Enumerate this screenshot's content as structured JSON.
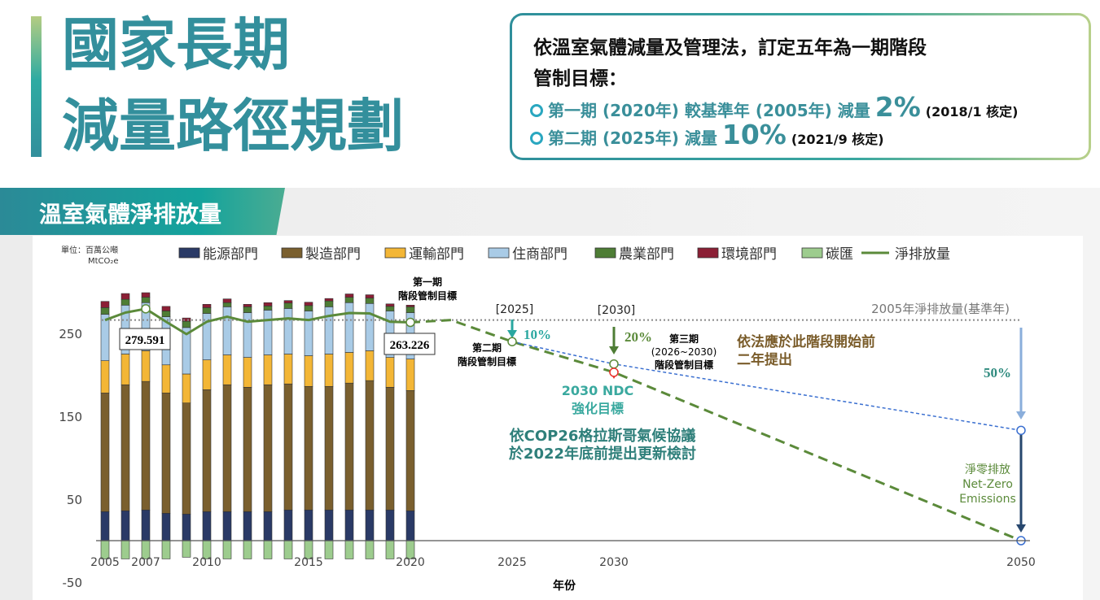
{
  "header": {
    "title_line1": "國家長期",
    "title_line2": "減量路徑規劃"
  },
  "goals": {
    "line1": "依溫室氣體減量及管理法，訂定五年為一期階段",
    "line2": "管制目標：",
    "items": [
      {
        "text": "第一期 (2020年) 較基準年 (2005年) 減量",
        "value": "2%",
        "note": "(2018/1 核定)"
      },
      {
        "text": "第二期 (2025年) 減量",
        "value": "10%",
        "note": "(2021/9 核定)"
      }
    ]
  },
  "section": {
    "title": "溫室氣體淨排放量"
  },
  "colors": {
    "title": "#338f9c",
    "energy": "#2a3a66",
    "manufacturing": "#7a5f2e",
    "transport": "#f3b636",
    "residential": "#a9cbe6",
    "agriculture": "#4e7d35",
    "environment": "#8b1f35",
    "sink": "#9dcc8e",
    "net": "#5b8a3a",
    "target_blue": "#3a6fd0"
  },
  "chart_data": {
    "type": "bar",
    "stacked": true,
    "unit_line1": "單位：百萬公噸",
    "unit_line2": "MtCO₂e",
    "xlabel": "年份",
    "ylabel": "",
    "ylim": [
      -55,
      300
    ],
    "yticks": [
      250,
      150,
      50,
      -50
    ],
    "xtick_labels": [
      "2005",
      "2007",
      "2010",
      "2015",
      "2020",
      "2025",
      "2030",
      "2050"
    ],
    "xticks": [
      2005,
      2007,
      2010,
      2015,
      2020,
      2025,
      2030,
      2050
    ],
    "categories": [
      2005,
      2006,
      2007,
      2008,
      2009,
      2010,
      2011,
      2012,
      2013,
      2014,
      2015,
      2016,
      2017,
      2018,
      2019,
      2020
    ],
    "series": [
      {
        "name": "能源部門",
        "key": "energy",
        "values": [
          35,
          36,
          37,
          33,
          32,
          35,
          35,
          35,
          35,
          37,
          37,
          37,
          37,
          37,
          37,
          36
        ]
      },
      {
        "name": "製造部門",
        "key": "manufacturing",
        "values": [
          143,
          152,
          155,
          145,
          134,
          147,
          153,
          150,
          153,
          152,
          149,
          149,
          153,
          156,
          148,
          145
        ]
      },
      {
        "name": "運輸部門",
        "key": "transport",
        "values": [
          39,
          37,
          37,
          34,
          35,
          36,
          36,
          36,
          36,
          36,
          37,
          39,
          37,
          36,
          36,
          38
        ]
      },
      {
        "name": "住商部門",
        "key": "residential",
        "values": [
          56,
          59,
          58,
          58,
          56,
          56,
          58,
          54,
          54,
          55,
          54,
          57,
          60,
          57,
          56,
          56
        ]
      },
      {
        "name": "農業部門",
        "key": "agriculture",
        "values": [
          8,
          7,
          6.5,
          7,
          7.5,
          7,
          5,
          7,
          5,
          6.5,
          6.5,
          7,
          6.5,
          6.5,
          5.5,
          7
        ]
      },
      {
        "name": "環境部門",
        "key": "environment",
        "values": [
          7.5,
          7,
          5.5,
          5.5,
          4,
          4,
          4.5,
          3,
          4,
          3,
          4,
          3,
          4,
          4,
          3,
          2
        ]
      },
      {
        "name": "碳匯",
        "key": "sink",
        "values": [
          -22,
          -22,
          -22,
          -22,
          -20,
          -22,
          -22,
          -22,
          -22,
          -22,
          -22,
          -22,
          -22,
          -22,
          -22,
          -22
        ]
      }
    ],
    "net_series": {
      "name": "淨排放量",
      "values": [
        266,
        275,
        279.591,
        264,
        249,
        264,
        270,
        264,
        266,
        268,
        266,
        271,
        274.5,
        274,
        264,
        263.226
      ]
    },
    "data_labels": [
      {
        "year": 2007,
        "label": "279.591"
      },
      {
        "year": 2020,
        "label": "263.226"
      }
    ],
    "baseline": {
      "value": 266,
      "label": "2005年淨排放量(基準年)"
    },
    "projection_netzero": [
      {
        "x": 2020,
        "y": 263.226
      },
      {
        "x": 2022,
        "y": 266
      },
      {
        "x": 2025,
        "y": 240
      },
      {
        "x": 2030,
        "y": 203
      },
      {
        "x": 2050,
        "y": 0
      }
    ],
    "projection_target": [
      {
        "x": 2025,
        "y": 240
      },
      {
        "x": 2030,
        "y": 213
      },
      {
        "x": 2050,
        "y": 133
      }
    ],
    "annotations": {
      "phase1_a": "第一期",
      "phase1_b": "階段管制目標",
      "y2025": "[2025]",
      "y2030": "[2030]",
      "pct10": "10%",
      "pct20": "20%",
      "pct50": "50%",
      "phase2_a": "第二期",
      "phase2_b": "階段管制目標",
      "phase3_a": "第三期",
      "phase3_b": "(2026~2030)",
      "phase3_c": "階段管制目標",
      "law_a": "依法應於此階段開始前",
      "law_b": "二年提出",
      "ndc_a": "2030 NDC",
      "ndc_b": "強化目標",
      "cop_a": "依COP26格拉斯哥氣候協議",
      "cop_b": "於2022年底前提出更新檢討",
      "nz_a": "淨零排放",
      "nz_b": "Net-Zero",
      "nz_c": "Emissions"
    }
  }
}
